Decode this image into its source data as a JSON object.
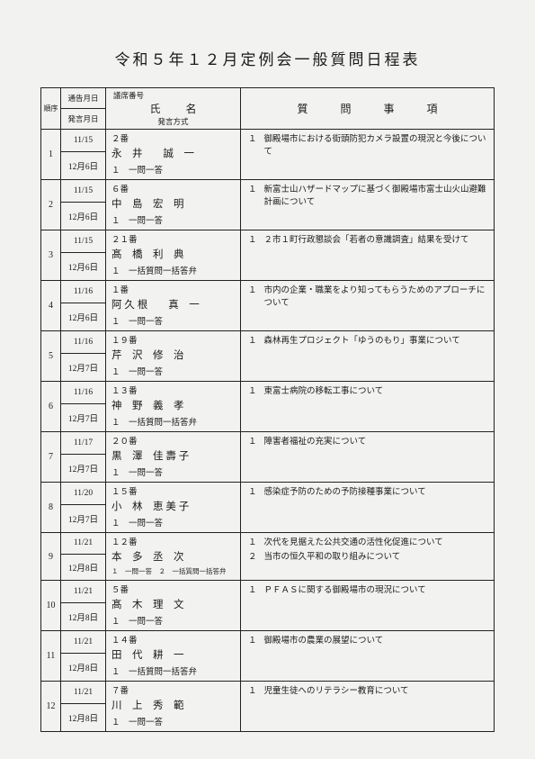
{
  "title": "令和５年１２月定例会一般質問日程表",
  "header": {
    "seq": "順序",
    "notice_date": "通告月日",
    "speech_date": "発言月日",
    "seat_label": "議席番号",
    "name_label": "氏名",
    "mode_label": "発言方式",
    "topic_label": "質問事項"
  },
  "rows": [
    {
      "n": "1",
      "notice": "11/15",
      "speech": "12月6日",
      "seat": "２番",
      "name": "永　井　　誠　一",
      "mode": "１　一問一答",
      "topics": [
        {
          "num": "１",
          "txt": "御殿場市における街頭防犯カメラ設置の現況と今後について"
        }
      ]
    },
    {
      "n": "2",
      "notice": "11/15",
      "speech": "12月6日",
      "seat": "６番",
      "name": "中　島　宏　明",
      "mode": "１　一問一答",
      "topics": [
        {
          "num": "１",
          "txt": "新富士山ハザードマップに基づく御殿場市富士山火山避難計画について"
        }
      ]
    },
    {
      "n": "3",
      "notice": "11/15",
      "speech": "12月6日",
      "seat": "２１番",
      "name": "髙　橋　利　典",
      "mode": "１　一括質問一括答弁",
      "topics": [
        {
          "num": "１",
          "txt": "２市１町行政懇談会「若者の意識調査」結果を受けて"
        }
      ]
    },
    {
      "n": "4",
      "notice": "11/16",
      "speech": "12月6日",
      "seat": "１番",
      "name": "阿 久 根　　真　一",
      "mode": "１　一問一答",
      "topics": [
        {
          "num": "１",
          "txt": "市内の企業・職業をより知ってもらうためのアプローチについて"
        }
      ]
    },
    {
      "n": "5",
      "notice": "11/16",
      "speech": "12月7日",
      "seat": "１９番",
      "name": "芹　沢　修　治",
      "mode": "１　一問一答",
      "topics": [
        {
          "num": "１",
          "txt": "森林再生プロジェクト「ゆうのもり」事業について"
        }
      ]
    },
    {
      "n": "6",
      "notice": "11/16",
      "speech": "12月7日",
      "seat": "１３番",
      "name": "神　野　義　孝",
      "mode": "１　一括質問一括答弁",
      "topics": [
        {
          "num": "１",
          "txt": "東富士病院の移転工事について"
        }
      ]
    },
    {
      "n": "7",
      "notice": "11/17",
      "speech": "12月7日",
      "seat": "２０番",
      "name": "黒　澤　佳 壽 子",
      "mode": "１　一問一答",
      "topics": [
        {
          "num": "１",
          "txt": "障害者福祉の充実について"
        }
      ]
    },
    {
      "n": "8",
      "notice": "11/20",
      "speech": "12月7日",
      "seat": "１５番",
      "name": "小　林　恵 美 子",
      "mode": "１　一問一答",
      "topics": [
        {
          "num": "１",
          "txt": "感染症予防のための予防接種事業について"
        }
      ]
    },
    {
      "n": "9",
      "notice": "11/21",
      "speech": "12月8日",
      "seat": "１２番",
      "name": "本　多　丞　次",
      "mode": "１　一問一答　２　一括質問一括答弁",
      "mode_small": true,
      "topics": [
        {
          "num": "１",
          "txt": "次代を見据えた公共交通の活性化促進について"
        },
        {
          "num": "２",
          "txt": "当市の恒久平和の取り組みについて"
        }
      ]
    },
    {
      "n": "10",
      "notice": "11/21",
      "speech": "12月8日",
      "seat": "５番",
      "name": "髙　木　理　文",
      "mode": "１　一問一答",
      "topics": [
        {
          "num": "１",
          "txt": "ＰＦＡＳに関する御殿場市の現況について"
        }
      ]
    },
    {
      "n": "11",
      "notice": "11/21",
      "speech": "12月8日",
      "seat": "１４番",
      "name": "田　代　耕　一",
      "mode": "１　一括質問一括答弁",
      "topics": [
        {
          "num": "１",
          "txt": "御殿場市の農業の展望について"
        }
      ]
    },
    {
      "n": "12",
      "notice": "11/21",
      "speech": "12月8日",
      "seat": "７番",
      "name": "川　上　秀　範",
      "mode": "１　一問一答",
      "topics": [
        {
          "num": "１",
          "txt": "児童生徒へのリテラシー教育について"
        }
      ]
    }
  ]
}
